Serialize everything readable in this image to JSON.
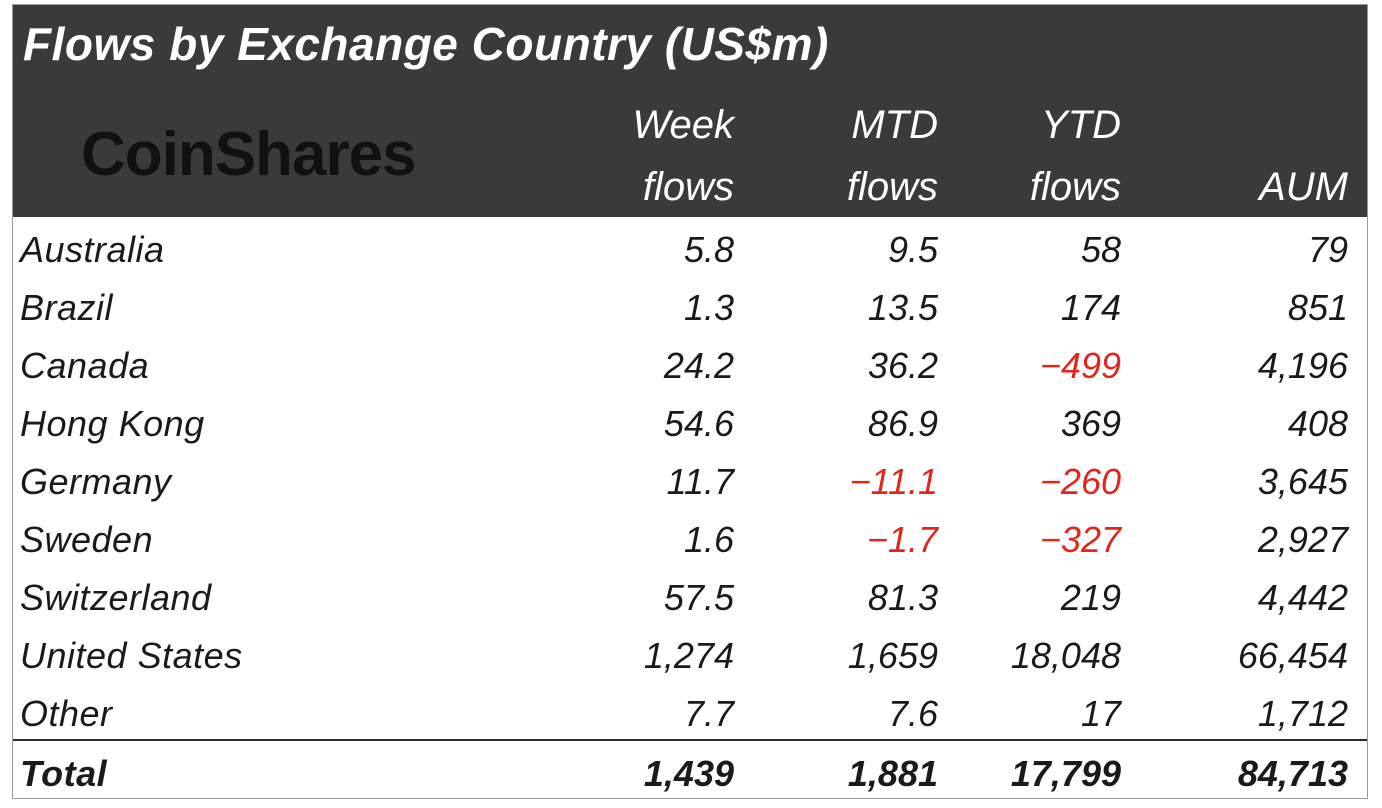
{
  "chart_data": {
    "type": "table",
    "title": "Flows by Exchange Country (US$m)",
    "logo_text": "CoinShares",
    "columns": [
      {
        "line1": "Week",
        "line2": "flows"
      },
      {
        "line1": "MTD",
        "line2": "flows"
      },
      {
        "line1": "YTD",
        "line2": "flows"
      },
      {
        "line1": "",
        "line2": "AUM"
      }
    ],
    "rows": [
      {
        "country": "Australia",
        "week": "5.8",
        "mtd": "9.5",
        "ytd": "58",
        "aum": "79"
      },
      {
        "country": "Brazil",
        "week": "1.3",
        "mtd": "13.5",
        "ytd": "174",
        "aum": "851"
      },
      {
        "country": "Canada",
        "week": "24.2",
        "mtd": "36.2",
        "ytd": "-499",
        "aum": "4,196"
      },
      {
        "country": "Hong Kong",
        "week": "54.6",
        "mtd": "86.9",
        "ytd": "369",
        "aum": "408"
      },
      {
        "country": "Germany",
        "week": "11.7",
        "mtd": "-11.1",
        "ytd": "-260",
        "aum": "3,645"
      },
      {
        "country": "Sweden",
        "week": "1.6",
        "mtd": "-1.7",
        "ytd": "-327",
        "aum": "2,927"
      },
      {
        "country": "Switzerland",
        "week": "57.5",
        "mtd": "81.3",
        "ytd": "219",
        "aum": "4,442"
      },
      {
        "country": "United States",
        "week": "1,274",
        "mtd": "1,659",
        "ytd": "18,048",
        "aum": "66,454"
      },
      {
        "country": "Other",
        "week": "7.7",
        "mtd": "7.6",
        "ytd": "17",
        "aum": "1,712"
      }
    ],
    "total": {
      "country": "Total",
      "week": "1,439",
      "mtd": "1,881",
      "ytd": "17,799",
      "aum": "84,713"
    },
    "colors": {
      "header_bg": "#3a3a3a",
      "negative": "#e1261c",
      "text": "#1a1a1a"
    }
  }
}
